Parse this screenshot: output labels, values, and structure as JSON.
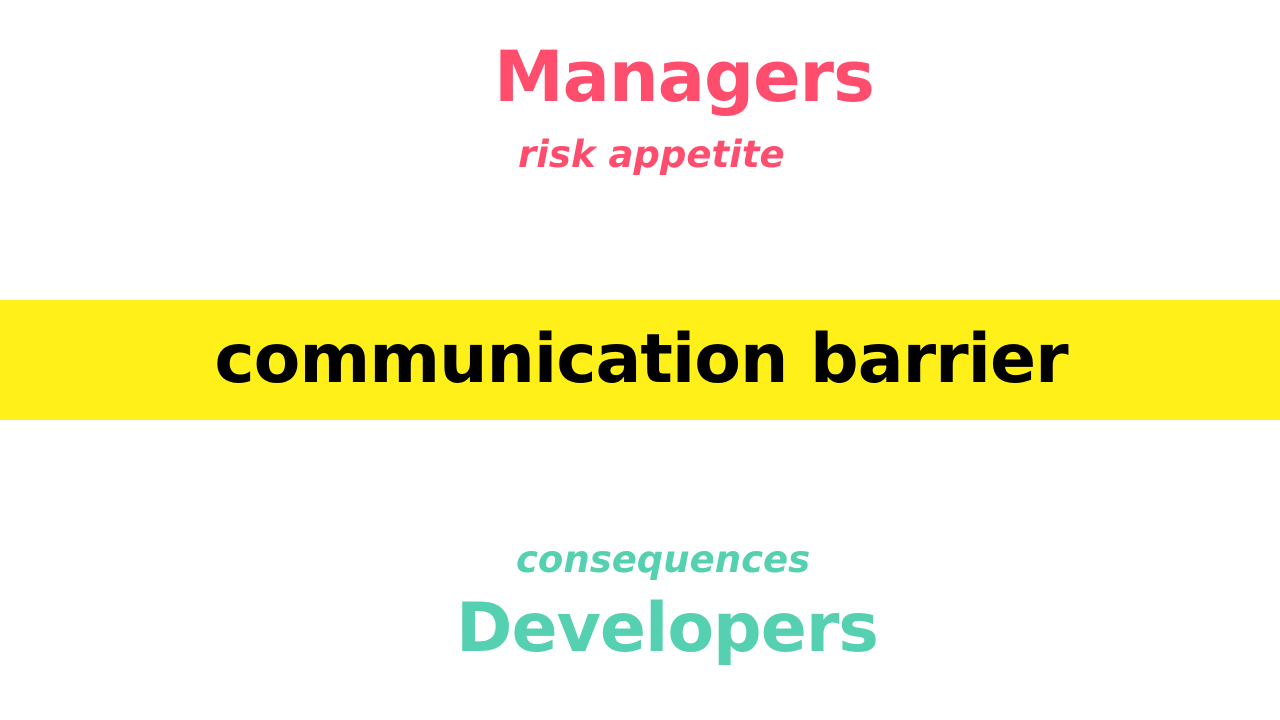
{
  "top": {
    "title": "Managers",
    "subtitle": "risk appetite",
    "color": "#ff4d6d"
  },
  "banner": {
    "text": "communication barrier",
    "background": "#fff01a",
    "text_color": "#000000"
  },
  "bottom": {
    "subtitle": "consequences",
    "title": "Developers",
    "color": "#55d0b0"
  }
}
